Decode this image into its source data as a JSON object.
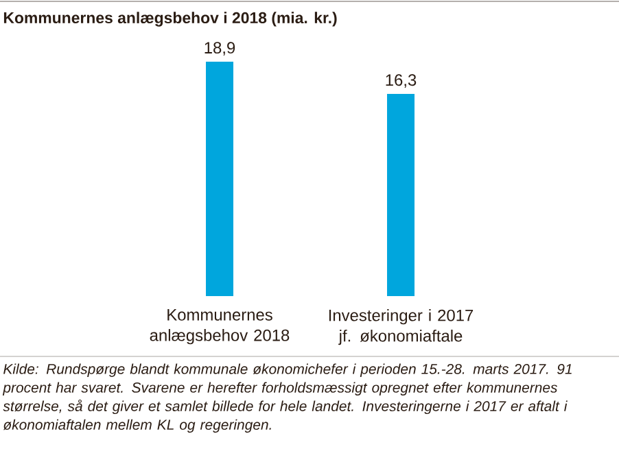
{
  "chart_data": {
    "type": "bar",
    "title": "Kommunernes anlægsbehov i 2018 (mia. kr.)",
    "categories": [
      "Kommunernes anlægsbehov 2018",
      "Investeringer i 2017 jf. økonomiaftale"
    ],
    "values": [
      18.9,
      16.3
    ],
    "value_labels": [
      "18,9",
      "16,3"
    ],
    "color": "#00a6dd",
    "annotations": [
      "Kilde: Rundspørge blandt kommunale økonomichefer i perioden 15.-28. marts 2017. 91 procent har svaret. Svarene er herefter forholdsmæssigt opregnet efter kommunernes størrelse, så det giver et samlet billede for hele landet. Investeringerne i 2017 er aftalt i økonomiaftalen mellem KL og regeringen."
    ]
  }
}
